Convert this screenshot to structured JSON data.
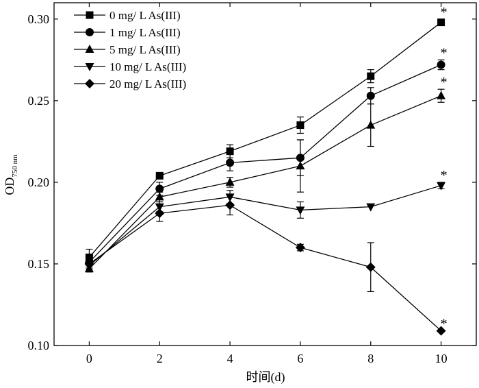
{
  "chart_data": {
    "type": "line",
    "xlabel": "时间(d)",
    "ylabel": "OD",
    "ylabel_sub": "750 nm",
    "xlim": [
      -1,
      11
    ],
    "ylim": [
      0.1,
      0.31
    ],
    "x_ticks": [
      0,
      2,
      4,
      6,
      8,
      10
    ],
    "x_tick_labels": [
      "0",
      "2",
      "4",
      "6",
      "8",
      "10"
    ],
    "y_ticks": [
      0.1,
      0.15,
      0.2,
      0.25,
      0.3
    ],
    "y_tick_labels": [
      "0.10",
      "0.15",
      "0.20",
      "0.25",
      "0.30"
    ],
    "x": [
      0,
      2,
      4,
      6,
      8,
      10
    ],
    "legend_position": "top-left",
    "grid": false,
    "significance_marker": "*",
    "series": [
      {
        "name": "0 mg/ L As(III)",
        "marker": "square",
        "values": [
          0.154,
          0.204,
          0.219,
          0.235,
          0.265,
          0.298
        ],
        "errors": [
          0.005,
          0.0,
          0.004,
          0.005,
          0.004,
          0.002
        ],
        "significant": [
          false,
          false,
          false,
          false,
          false,
          true
        ]
      },
      {
        "name": "1 mg/ L As(III)",
        "marker": "circle",
        "values": [
          0.151,
          0.196,
          0.212,
          0.215,
          0.253,
          0.272
        ],
        "errors": [
          0.003,
          0.004,
          0.005,
          0.011,
          0.005,
          0.003
        ],
        "significant": [
          false,
          false,
          false,
          false,
          false,
          true
        ]
      },
      {
        "name": "5 mg/ L As(III)",
        "marker": "triangle-up",
        "values": [
          0.147,
          0.191,
          0.2,
          0.21,
          0.235,
          0.253
        ],
        "errors": [
          0.002,
          0.003,
          0.003,
          0.016,
          0.013,
          0.004
        ],
        "significant": [
          false,
          false,
          false,
          false,
          false,
          true
        ]
      },
      {
        "name": "10 mg/ L As(III)",
        "marker": "triangle-down",
        "values": [
          0.149,
          0.185,
          0.191,
          0.183,
          0.185,
          0.198
        ],
        "errors": [
          0.002,
          0.003,
          0.004,
          0.005,
          0.0,
          0.002
        ],
        "significant": [
          false,
          false,
          false,
          false,
          false,
          true
        ]
      },
      {
        "name": "20 mg/ L As(III)",
        "marker": "diamond",
        "values": [
          0.15,
          0.181,
          0.186,
          0.16,
          0.148,
          0.109
        ],
        "errors": [
          0.003,
          0.005,
          0.006,
          0.002,
          0.015,
          0.0
        ],
        "significant": [
          false,
          false,
          false,
          false,
          false,
          true
        ]
      }
    ]
  }
}
